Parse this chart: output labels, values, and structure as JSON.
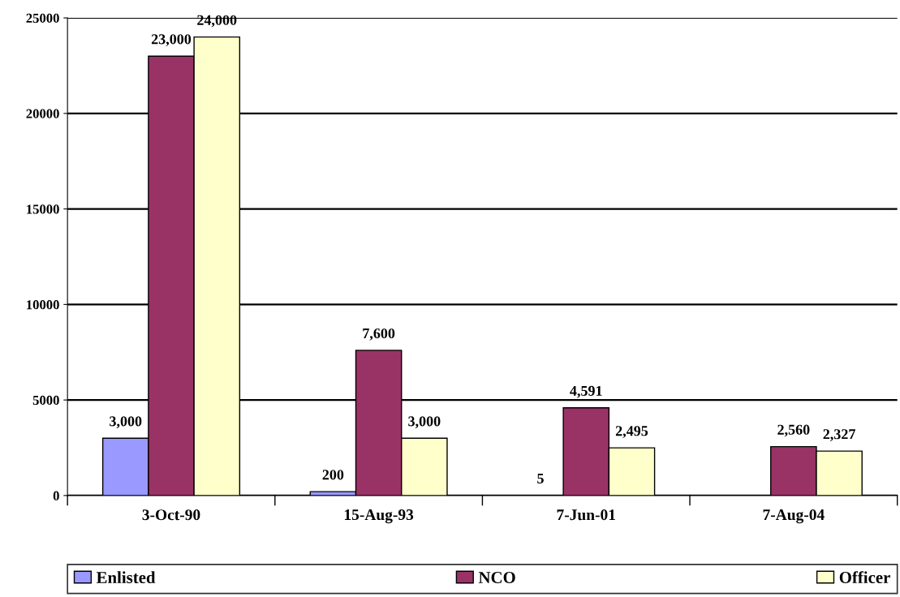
{
  "chart_data": {
    "type": "bar",
    "categories": [
      "3-Oct-90",
      "15-Aug-93",
      "7-Jun-01",
      "7-Aug-04"
    ],
    "series": [
      {
        "name": "Enlisted",
        "color": "#9999ff",
        "values": [
          3000,
          200,
          5,
          null
        ],
        "value_labels": [
          "3,000",
          "200",
          "5",
          null
        ]
      },
      {
        "name": "NCO",
        "color": "#993366",
        "values": [
          23000,
          7600,
          4591,
          2560
        ],
        "value_labels": [
          "23,000",
          "7,600",
          "4,591",
          "2,560"
        ]
      },
      {
        "name": "Officer",
        "color": "#ffffcc",
        "values": [
          24000,
          3000,
          2495,
          2327
        ],
        "value_labels": [
          "24,000",
          "3,000",
          "2,495",
          "2,327"
        ]
      }
    ],
    "ylim": [
      0,
      25000
    ],
    "yticks": [
      0,
      5000,
      10000,
      15000,
      20000,
      25000
    ],
    "grid": "y",
    "legend": "bottom"
  }
}
